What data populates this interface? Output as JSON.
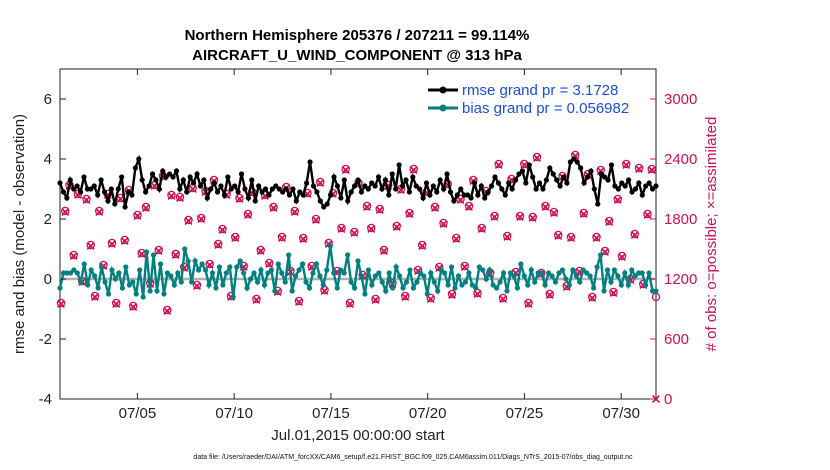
{
  "chart_data": {
    "type": "line",
    "title_line1": "Northern Hemisphere 205376 / 207211 = 99.114%",
    "title_line2": "AIRCRAFT_U_WIND_COMPONENT @ 313 hPa",
    "xlabel": "Jul.01,2015 00:00:00 start",
    "ylabel_left": "rmse and bias (model - observation)",
    "ylabel_right": "# of obs: o=possible; ×=assimilated",
    "footer": "data file: /Users/raeder/DAI/ATM_forcXX/CAM6_setup/f.e21.FHIST_BGC.f09_025.CAM6assim.011/Diags_NTrS_2015-07/obs_diag_output.nc",
    "xlim": [
      1.0,
      31.8
    ],
    "x_ticks": [
      5,
      10,
      15,
      20,
      25,
      30
    ],
    "x_tick_labels": [
      "07/05",
      "07/10",
      "07/15",
      "07/20",
      "07/25",
      "07/30"
    ],
    "ylim_left": [
      -4,
      7
    ],
    "y_ticks_left": [
      "-4",
      "-2",
      "0",
      "2",
      "4",
      "6"
    ],
    "ylim_right": [
      0,
      3300
    ],
    "y_ticks_right": [
      "0",
      "600",
      "1200",
      "1800",
      "2400",
      "3000"
    ],
    "colors": {
      "rmse": "#000000",
      "bias": "#008080",
      "obs": "#cc1155",
      "legend_text": "#1a4fd6",
      "zero_line": "#b0b0b0"
    },
    "series": [
      {
        "name": "rmse grand pr = 3.1728",
        "axis": "left",
        "values": [
          3.2,
          2.9,
          2.7,
          3.3,
          3.0,
          3.1,
          2.9,
          3.4,
          3.0,
          3.0,
          3.1,
          2.8,
          3.3,
          2.9,
          2.6,
          3.0,
          2.5,
          3.0,
          3.4,
          2.4,
          2.9,
          2.8,
          3.7,
          4.0,
          3.3,
          2.9,
          3.1,
          3.5,
          3.3,
          3.0,
          3.6,
          3.4,
          3.5,
          3.4,
          3.6,
          3.0,
          3.3,
          2.9,
          3.4,
          3.2,
          3.5,
          3.1,
          3.3,
          2.7,
          3.0,
          3.2,
          2.9,
          3.1,
          2.8,
          3.4,
          3.0,
          3.1,
          2.9,
          3.5,
          3.0,
          2.7,
          3.3,
          2.6,
          3.1,
          2.9,
          3.0,
          2.8,
          3.0,
          3.1,
          3.0,
          2.9,
          3.0,
          2.8,
          3.0,
          2.6,
          2.9,
          2.8,
          3.2,
          3.9,
          3.1,
          2.9,
          2.6,
          2.4,
          2.5,
          2.8,
          3.4,
          3.1,
          2.7,
          3.3,
          2.6,
          2.9,
          3.1,
          3.3,
          2.9,
          3.1,
          3.0,
          3.2,
          3.1,
          3.4,
          3.0,
          3.3,
          2.8,
          3.5,
          3.0,
          3.8,
          3.1,
          3.3,
          2.9,
          3.4,
          3.1,
          3.0,
          2.7,
          3.2,
          2.8,
          3.1,
          2.9,
          3.3,
          3.0,
          3.5,
          2.9,
          2.6,
          2.8,
          3.0,
          2.8,
          2.8,
          2.7,
          3.2,
          2.8,
          3.1,
          2.7,
          2.9,
          3.1,
          3.4,
          3.2,
          3.0,
          2.8,
          3.2,
          3.0,
          3.3,
          3.5,
          3.6,
          3.2,
          3.8,
          3.4,
          3.0,
          3.2,
          3.0,
          3.3,
          3.7,
          3.5,
          3.3,
          3.1,
          3.4,
          3.2,
          3.9,
          4.0,
          3.9,
          3.7,
          3.2,
          3.4,
          3.6,
          3.0,
          2.5,
          3.5,
          3.4,
          3.3,
          3.8,
          3.1,
          3.0,
          3.2,
          3.1,
          3.3,
          2.9,
          3.0,
          3.2,
          2.8,
          3.1,
          3.2,
          3.0,
          3.1
        ]
      },
      {
        "name": "bias grand pr = 0.056982",
        "axis": "left",
        "values": [
          -0.3,
          0.2,
          0.2,
          0.2,
          0.3,
          0.2,
          -0.1,
          0.5,
          -0.2,
          0.3,
          0.1,
          -0.3,
          0.4,
          -0.1,
          -0.5,
          0.3,
          0.0,
          0.2,
          -0.3,
          0.4,
          -0.2,
          -0.1,
          -0.5,
          0.3,
          -0.6,
          0.9,
          -0.4,
          0.8,
          -0.4,
          0.5,
          -0.5,
          0.2,
          0.1,
          -0.2,
          0.2,
          -0.1,
          1.0,
          0.6,
          -0.1,
          0.6,
          0.3,
          0.5,
          0.3,
          -0.2,
          0.2,
          -0.3,
          0.4,
          -0.2,
          0.2,
          0.4,
          -0.6,
          0.4,
          0.6,
          0.2,
          -0.3,
          0.0,
          0.2,
          -0.1,
          0.3,
          -0.2,
          0.2,
          0.3,
          -0.4,
          0.5,
          0.2,
          -0.1,
          0.8,
          -0.4,
          0.1,
          0.3,
          0.5,
          -0.1,
          -0.3,
          0.2,
          0.5,
          0.1,
          -0.2,
          0.3,
          1.1,
          0.2,
          -0.3,
          0.3,
          0.2,
          0.8,
          -0.1,
          -0.3,
          0.6,
          0.1,
          -0.5,
          0.3,
          -0.2,
          0.1,
          0.2,
          -0.1,
          -0.4,
          0.2,
          -0.3,
          0.4,
          0.1,
          -0.3,
          -0.1,
          0.3,
          -0.3,
          -0.1,
          0.2,
          0.1,
          -0.5,
          0.2,
          -0.1,
          -0.4,
          0.3,
          0.2,
          -0.2,
          0.4,
          -0.3,
          0.1,
          -0.2,
          -0.1,
          0.2,
          -0.2,
          -0.3,
          0.4,
          0.3,
          0.0,
          0.3,
          -0.2,
          -0.3,
          -0.1,
          0.2,
          -0.4,
          0.2,
          0.1,
          -0.3,
          0.5,
          0.1,
          -0.2,
          0.3,
          -0.1,
          0.2,
          0.2,
          -0.2,
          0.2,
          0.1,
          -0.1,
          0.2,
          0.3,
          0.0,
          -0.2,
          0.3,
          0.1,
          -0.1,
          0.3,
          0.2,
          0.1,
          -0.3,
          0.4,
          0.8,
          -0.4,
          0.3,
          -0.1,
          0.3,
          0.1,
          -0.2,
          0.2,
          -0.2,
          0.3,
          0.1,
          0.2,
          0.2,
          -0.2,
          0.2,
          -0.4,
          -0.4
        ]
      },
      {
        "name": "obs possible",
        "axis": "right",
        "values": [
          960,
          1880,
          2140,
          1440,
          2050,
          1180,
          2000,
          1540,
          1030,
          1880,
          1340,
          2050,
          1560,
          960,
          2010,
          1590,
          2090,
          930,
          1840,
          1460,
          1920,
          1160,
          2140,
          1490,
          2230,
          890,
          2040,
          1450,
          2020,
          1320,
          1790,
          2110,
          1140,
          1810,
          2080,
          1350,
          2190,
          1550,
          1700,
          2050,
          1030,
          1620,
          2010,
          1330,
          1850,
          2070,
          1000,
          1490,
          2040,
          1360,
          1920,
          1080,
          1620,
          2120,
          1280,
          1880,
          980,
          1610,
          2060,
          1330,
          1800,
          2170,
          1090,
          1560,
          2060,
          1280,
          1710,
          2300,
          960,
          1670,
          2160,
          1240,
          1930,
          1710,
          1000,
          1900,
          1490,
          2140,
          1160,
          1730,
          2100,
          1030,
          1860,
          2300,
          1290,
          1540,
          2070,
          1010,
          1920,
          1320,
          1760,
          2150,
          1050,
          1610,
          2000,
          1330,
          1930,
          2190,
          1060,
          1710,
          2080,
          1260,
          1830,
          2350,
          1010,
          1630,
          2200,
          1270,
          1830,
          2350,
          960,
          1820,
          2420,
          1260,
          1930,
          1050,
          1870,
          1640,
          2230,
          1130,
          1620,
          2440,
          1280,
          1860,
          2250,
          1020,
          1620,
          2290,
          1480,
          1780,
          1070,
          2000,
          1430,
          2350,
          1200,
          1650,
          2310,
          1150,
          1850,
          2300,
          1020
        ]
      },
      {
        "name": "obs assimilated",
        "axis": "right",
        "values": [
          950,
          1870,
          2130,
          1430,
          2040,
          1170,
          1990,
          1530,
          1020,
          1870,
          1330,
          2040,
          1550,
          950,
          2000,
          1580,
          2080,
          920,
          1830,
          1450,
          1910,
          1150,
          2130,
          1480,
          2220,
          880,
          2030,
          1440,
          2010,
          1310,
          1780,
          2100,
          1130,
          1800,
          2070,
          1340,
          2180,
          1540,
          1690,
          2040,
          1020,
          1610,
          2000,
          1320,
          1840,
          2060,
          990,
          1480,
          2030,
          1350,
          1910,
          1070,
          1610,
          2110,
          1270,
          1870,
          970,
          1600,
          2050,
          1320,
          1790,
          2160,
          1080,
          1550,
          2050,
          1270,
          1700,
          2290,
          950,
          1660,
          2150,
          1230,
          1920,
          1700,
          990,
          1890,
          1480,
          2130,
          1150,
          1720,
          2090,
          1020,
          1850,
          2290,
          1280,
          1530,
          2060,
          1000,
          1910,
          1310,
          1750,
          2140,
          1040,
          1600,
          1990,
          1320,
          1920,
          2180,
          1050,
          1700,
          2070,
          1250,
          1820,
          2340,
          1000,
          1620,
          2190,
          1260,
          1820,
          2340,
          950,
          1810,
          2410,
          1250,
          1920,
          1040,
          1860,
          1630,
          2220,
          1120,
          1610,
          2430,
          1270,
          1850,
          2240,
          1010,
          1610,
          2280,
          1470,
          1770,
          1060,
          1990,
          1420,
          2340,
          1190,
          1640,
          2300,
          1140,
          1840,
          2290,
          0
        ]
      }
    ]
  }
}
